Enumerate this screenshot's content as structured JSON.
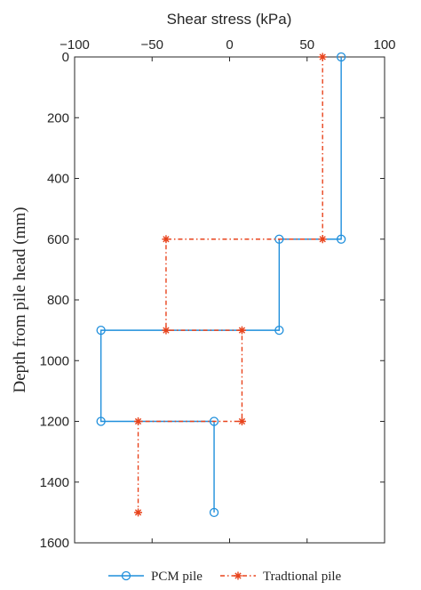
{
  "chart_data": {
    "type": "line",
    "title": "",
    "xlabel": "Shear stress (kPa)",
    "ylabel": "Depth from pile head (mm)",
    "xlim": [
      -100,
      100
    ],
    "ylim": [
      0,
      1600
    ],
    "y_reversed": true,
    "x_axis_position": "top",
    "xticks": [
      -100,
      -50,
      0,
      50,
      100
    ],
    "yticks": [
      0,
      200,
      400,
      600,
      800,
      1000,
      1200,
      1400,
      1600
    ],
    "grid": false,
    "legend_position": "bottom",
    "series": [
      {
        "name": "PCM pile",
        "color": "#1f8fdc",
        "marker": "circle",
        "line_style": "solid",
        "x": [
          72,
          72,
          32,
          32,
          -83,
          -83,
          -10,
          -10
        ],
        "y": [
          0,
          600,
          600,
          900,
          900,
          1200,
          1200,
          1500
        ]
      },
      {
        "name": "Tradtional pile",
        "color": "#e8431c",
        "marker": "asterisk",
        "line_style": "dashdot",
        "x": [
          60,
          60,
          -41,
          -41,
          8,
          8,
          -59,
          -59
        ],
        "y": [
          0,
          600,
          600,
          900,
          900,
          1200,
          1200,
          1500
        ]
      }
    ]
  }
}
